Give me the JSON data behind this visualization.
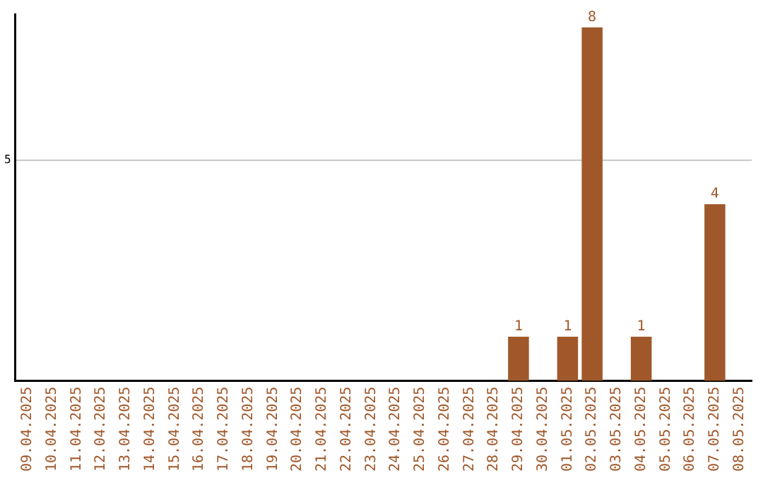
{
  "chart_data": {
    "type": "bar",
    "categories": [
      "09.04.2025",
      "10.04.2025",
      "11.04.2025",
      "12.04.2025",
      "13.04.2025",
      "14.04.2025",
      "15.04.2025",
      "16.04.2025",
      "17.04.2025",
      "18.04.2025",
      "19.04.2025",
      "20.04.2025",
      "21.04.2025",
      "22.04.2025",
      "23.04.2025",
      "24.04.2025",
      "25.04.2025",
      "26.04.2025",
      "27.04.2025",
      "28.04.2025",
      "29.04.2025",
      "30.04.2025",
      "01.05.2025",
      "02.05.2025",
      "03.05.2025",
      "04.05.2025",
      "05.05.2025",
      "06.05.2025",
      "07.05.2025",
      "08.05.2025"
    ],
    "values": [
      null,
      null,
      null,
      null,
      null,
      null,
      null,
      null,
      null,
      null,
      null,
      null,
      null,
      null,
      null,
      null,
      null,
      null,
      null,
      null,
      1,
      null,
      1,
      8,
      null,
      1,
      null,
      null,
      4,
      null
    ],
    "data_labels": true,
    "color": "#a0582a",
    "ylim": [
      0,
      8.3
    ],
    "yticks": [
      5
    ],
    "grid": "y",
    "legend": false
  }
}
